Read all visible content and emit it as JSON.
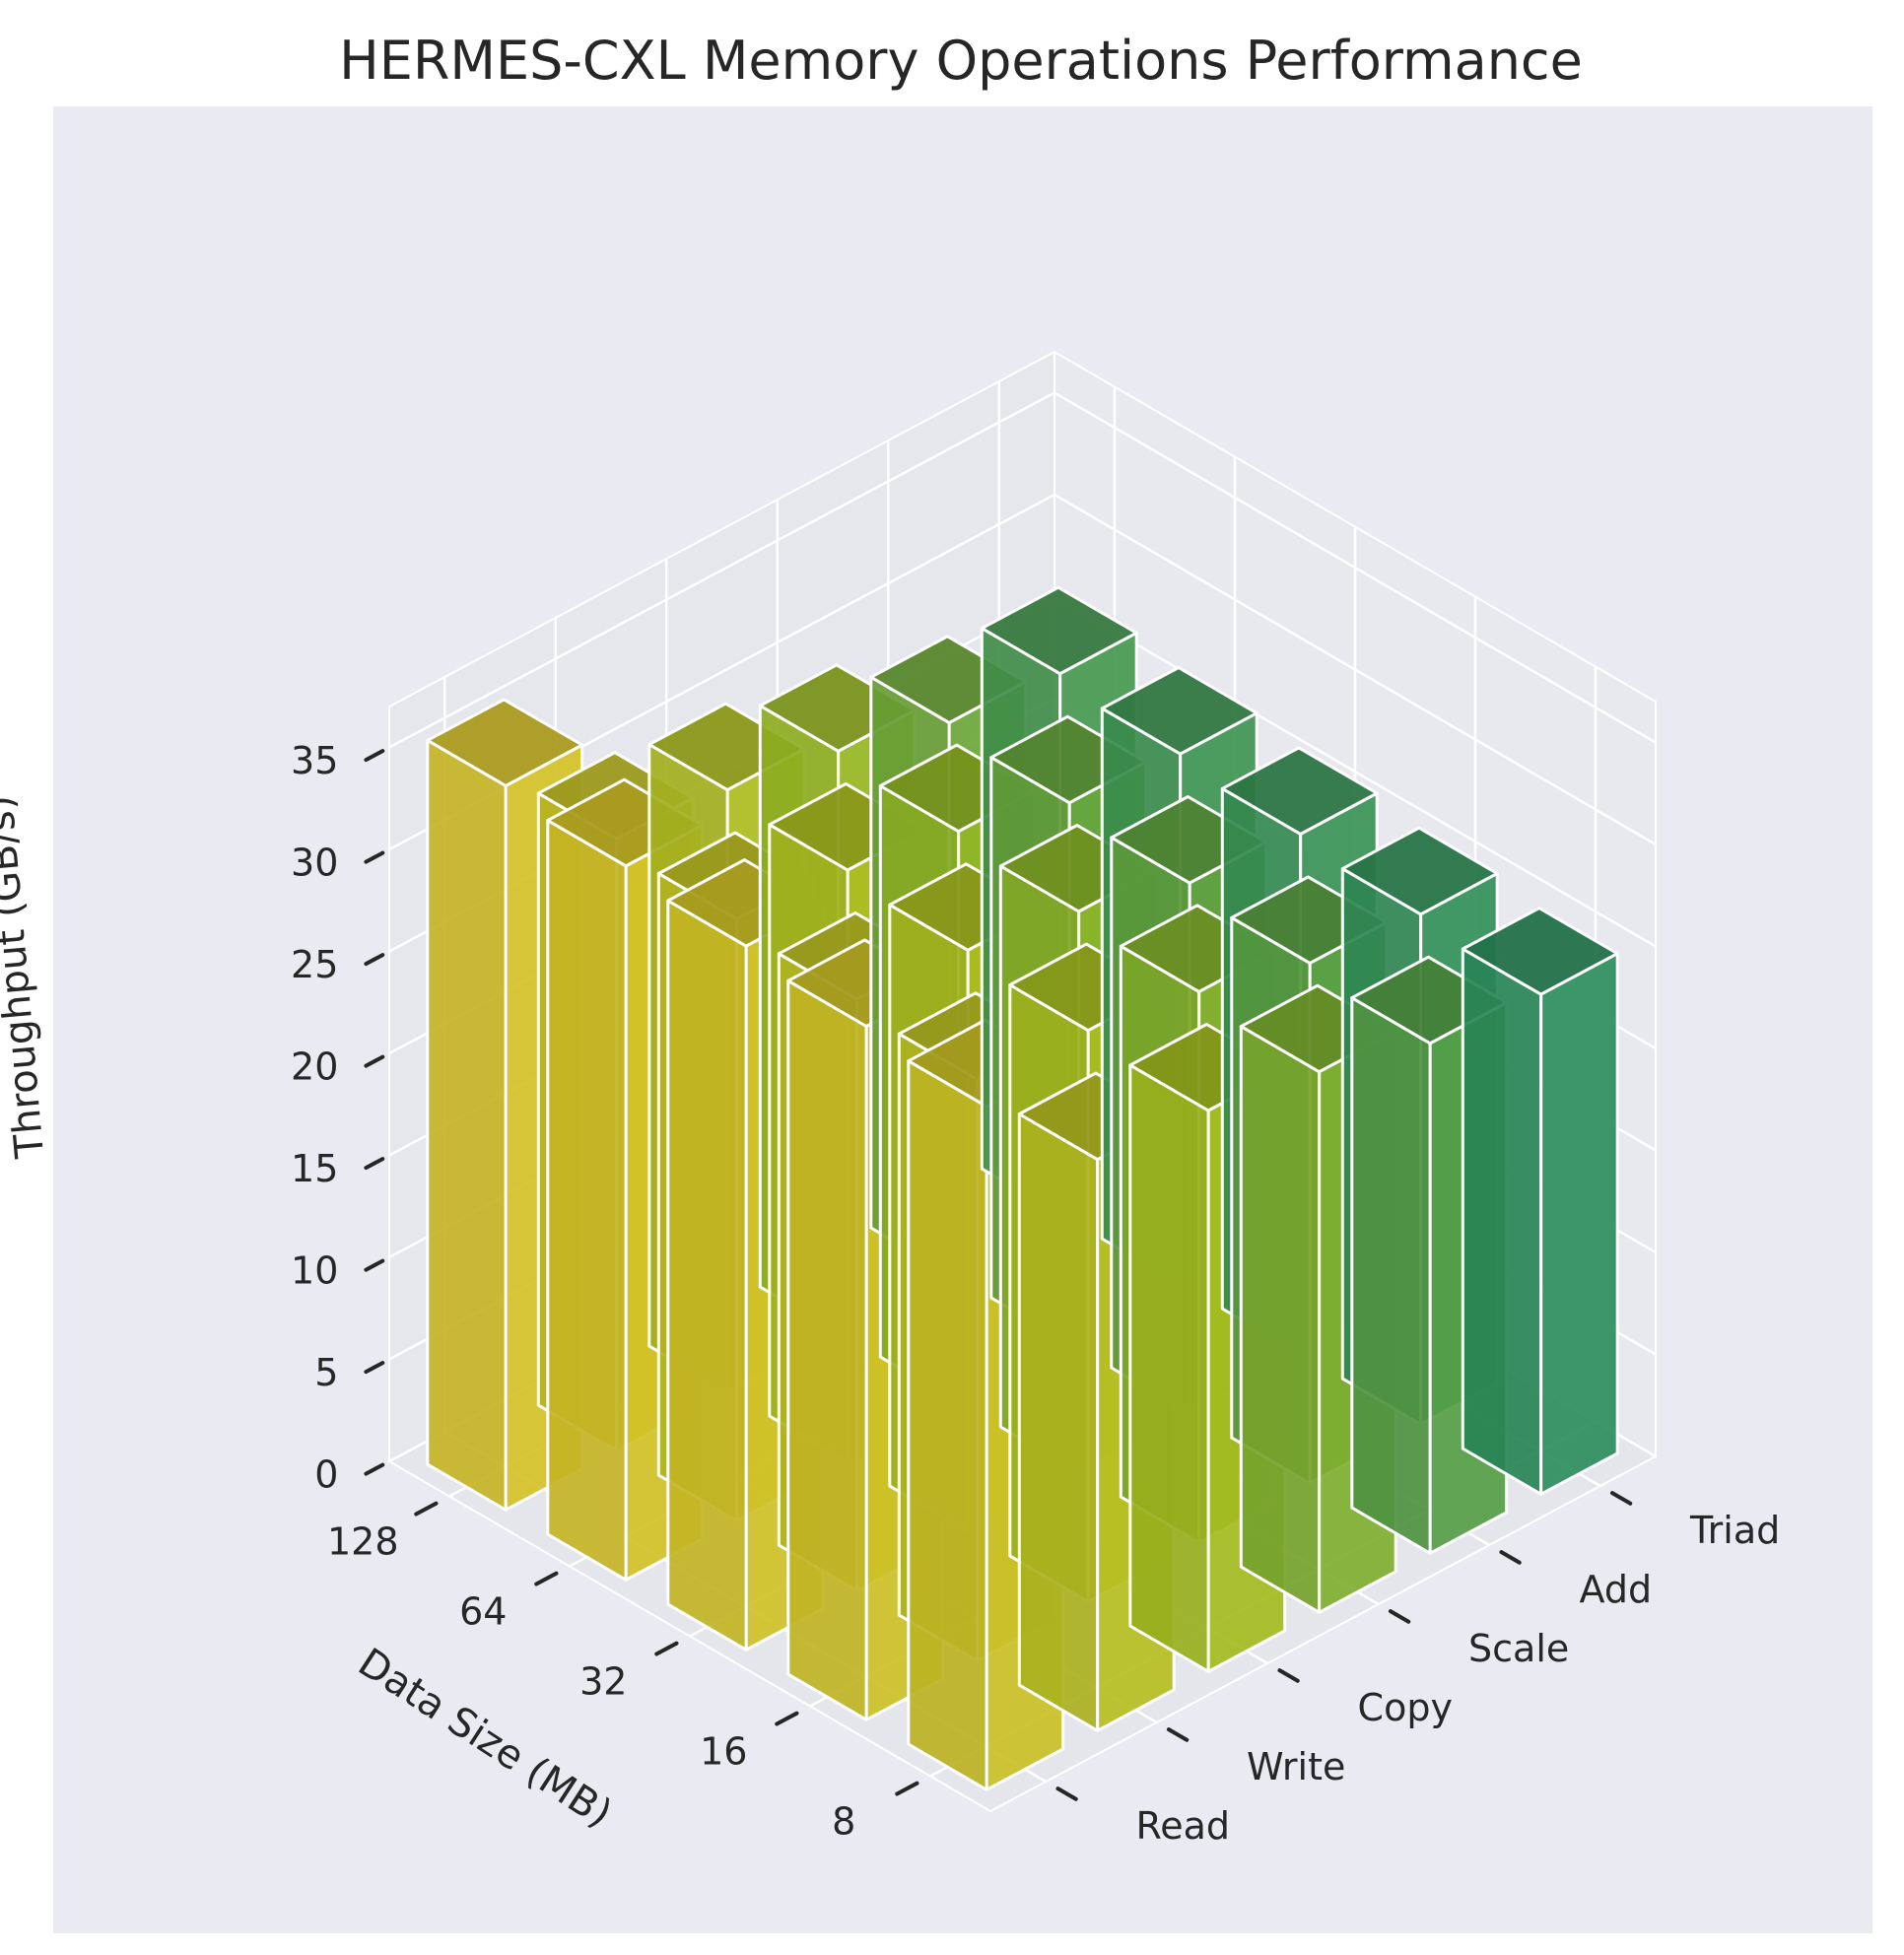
{
  "chart_data": {
    "type": "bar3d",
    "title": "HERMES-CXL Memory Operations Performance",
    "xlabel": "Data Size (MB)",
    "ylabel": "",
    "zlabel": "Throughput (GB/s)",
    "x_categories": [
      "8",
      "16",
      "32",
      "64",
      "128"
    ],
    "y_categories": [
      "Read",
      "Write",
      "Copy",
      "Scale",
      "Add",
      "Triad"
    ],
    "zlim": [
      0,
      37
    ],
    "z_ticks": [
      0,
      5,
      10,
      15,
      20,
      25,
      30,
      35
    ],
    "grid": true,
    "colormap": "summer_r",
    "series": [
      {
        "name": "Read",
        "values": [
          33.5,
          34.0,
          34.5,
          35.0,
          35.5
        ]
      },
      {
        "name": "Write",
        "values": [
          28.0,
          28.5,
          29.0,
          29.5,
          30.0
        ]
      },
      {
        "name": "Copy",
        "values": [
          27.5,
          28.0,
          28.5,
          29.0,
          29.5
        ]
      },
      {
        "name": "Scale",
        "values": [
          26.5,
          27.0,
          27.5,
          28.0,
          28.5
        ]
      },
      {
        "name": "Add",
        "values": [
          25.0,
          25.5,
          26.0,
          26.5,
          27.0
        ]
      },
      {
        "name": "Triad",
        "values": [
          24.5,
          25.0,
          25.5,
          26.0,
          26.5
        ]
      }
    ]
  }
}
